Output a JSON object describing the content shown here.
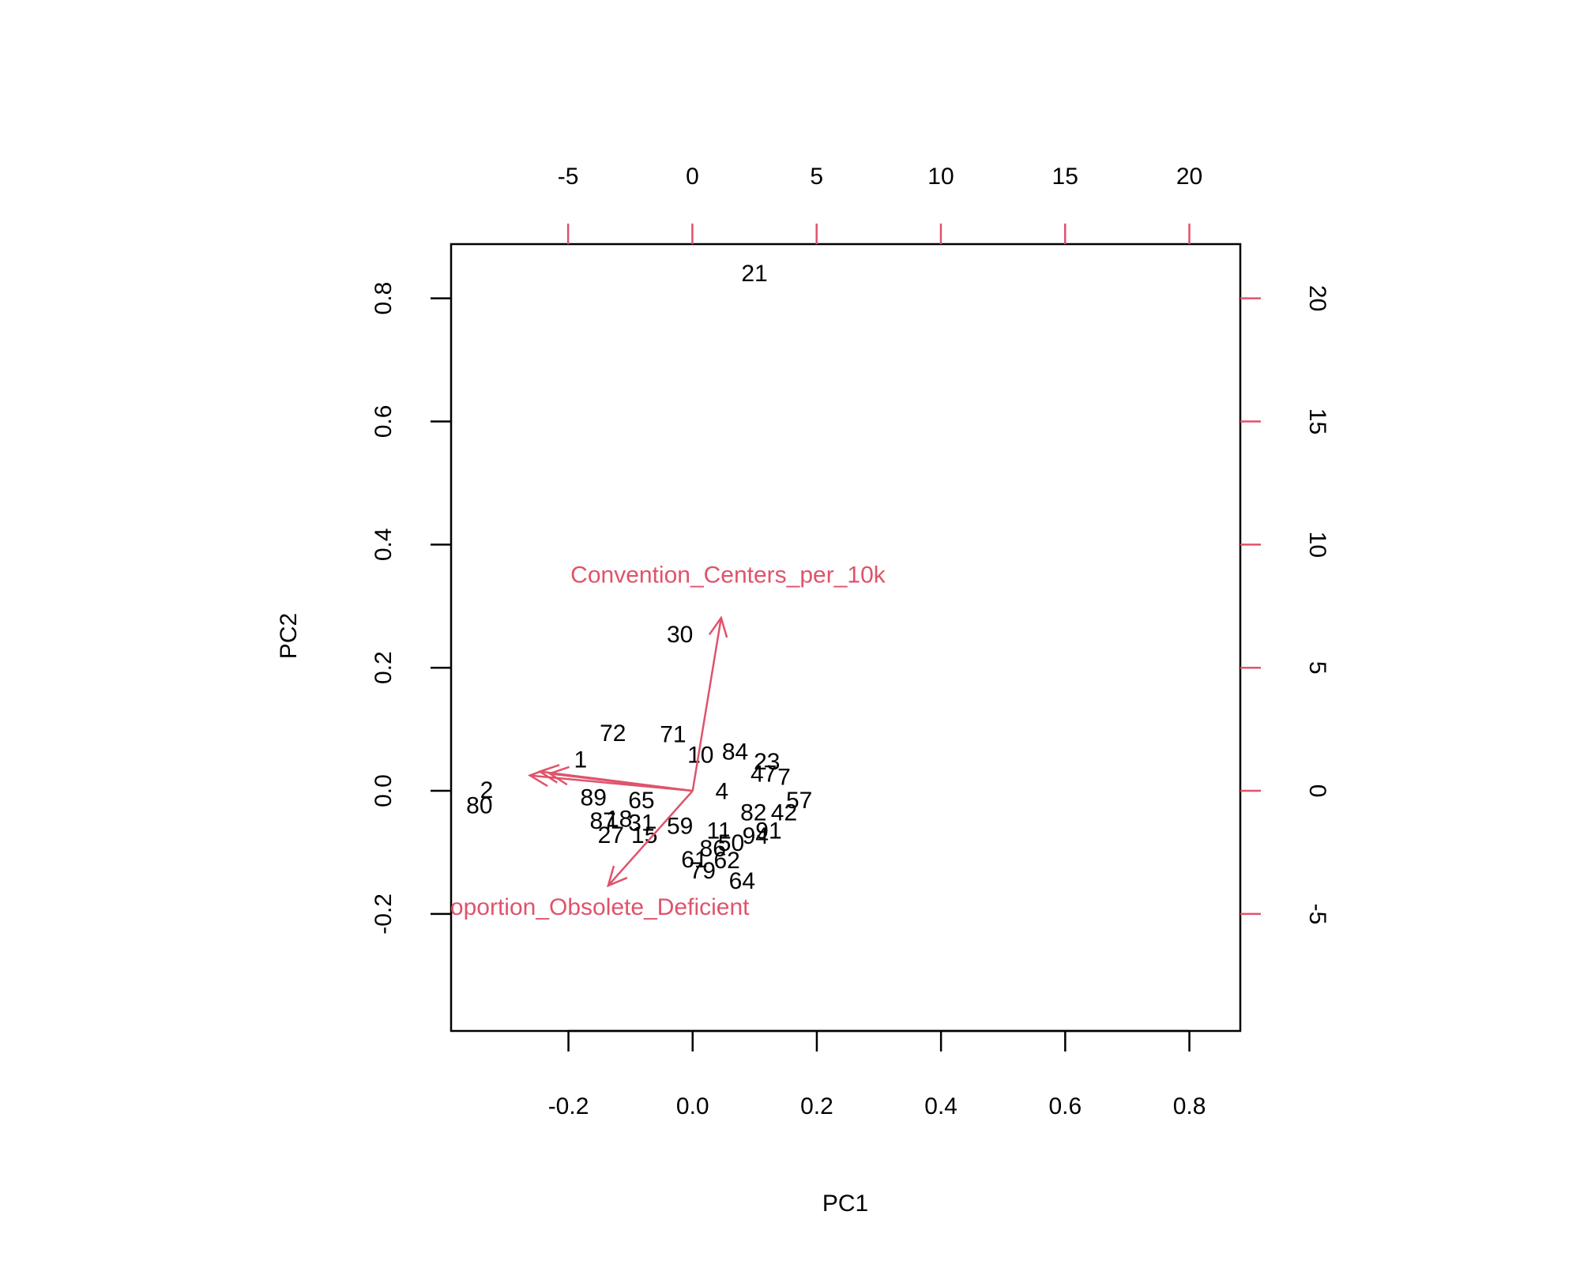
{
  "chart_data": {
    "type": "biplot",
    "xlabel": "PC1",
    "ylabel": "PC2",
    "xlim": [
      -0.389,
      0.882
    ],
    "ylim": [
      -0.39,
      0.888
    ],
    "xticks": [
      {
        "value": -0.2,
        "label": "-0.2"
      },
      {
        "value": 0,
        "label": "0.0"
      },
      0.2,
      0.4,
      0.6,
      0.8
    ],
    "yticks": [
      {
        "value": -0.2,
        "label": "-0.2"
      },
      {
        "value": 0,
        "label": "0.0"
      },
      0.2,
      0.4,
      0.6,
      0.8
    ],
    "x2lim": [
      -9.71,
      22.05
    ],
    "y2lim": [
      -9.75,
      22.2
    ],
    "x2ticks": [
      -5,
      0,
      5,
      10,
      15,
      20
    ],
    "y2ticks": [
      -5,
      0,
      5,
      10,
      15,
      20
    ],
    "point_color": "#000000",
    "arrow_color": "#DF536B",
    "points": {
      "labels": [
        "21",
        "30",
        "72",
        "71",
        "84",
        "23",
        "7",
        "57",
        "80",
        "2",
        "89",
        "87",
        "27",
        "15",
        "64",
        "79",
        "62",
        "50",
        "94",
        "91",
        "1",
        "10",
        "47",
        "11",
        "86",
        "61",
        "42",
        "82",
        "18",
        "31",
        "59",
        "65",
        "4"
      ],
      "x": [
        2.5,
        -0.5,
        -3.2,
        -0.78,
        1.72,
        3.0,
        3.69,
        4.3,
        -8.57,
        -8.28,
        -3.98,
        -3.6,
        -3.28,
        -1.93,
        2.0,
        0.41,
        1.39,
        1.56,
        2.54,
        3.07,
        -4.5,
        0.33,
        2.87,
        1.07,
        0.82,
        0.08,
        3.69,
        2.46,
        -2.95,
        -2.05,
        -0.5,
        -2.05,
        1.19
      ],
      "y": [
        20.95,
        6.28,
        2.27,
        2.23,
        1.53,
        1.12,
        0.5,
        -0.45,
        -0.66,
        -0.04,
        -0.33,
        -1.28,
        -1.86,
        -1.86,
        -3.72,
        -3.31,
        -2.89,
        -2.19,
        -1.9,
        -1.69,
        1.2,
        1.4,
        0.62,
        -1.69,
        -2.4,
        -2.85,
        -0.95,
        -0.95,
        -1.2,
        -1.36,
        -1.49,
        -0.45,
        -0.08
      ]
    },
    "loadings": {
      "labels": [
        "Convention_Centers_per_10k",
        "Proportion_Obsolete_Deficient"
      ],
      "x": [
        0.0459,
        -0.136
      ],
      "y": [
        0.281,
        -0.154
      ]
    },
    "extra_arrows": {
      "x": [
        -0.246,
        -0.262,
        -0.23
      ],
      "y": [
        0.0314,
        0.025,
        0.028
      ]
    }
  }
}
